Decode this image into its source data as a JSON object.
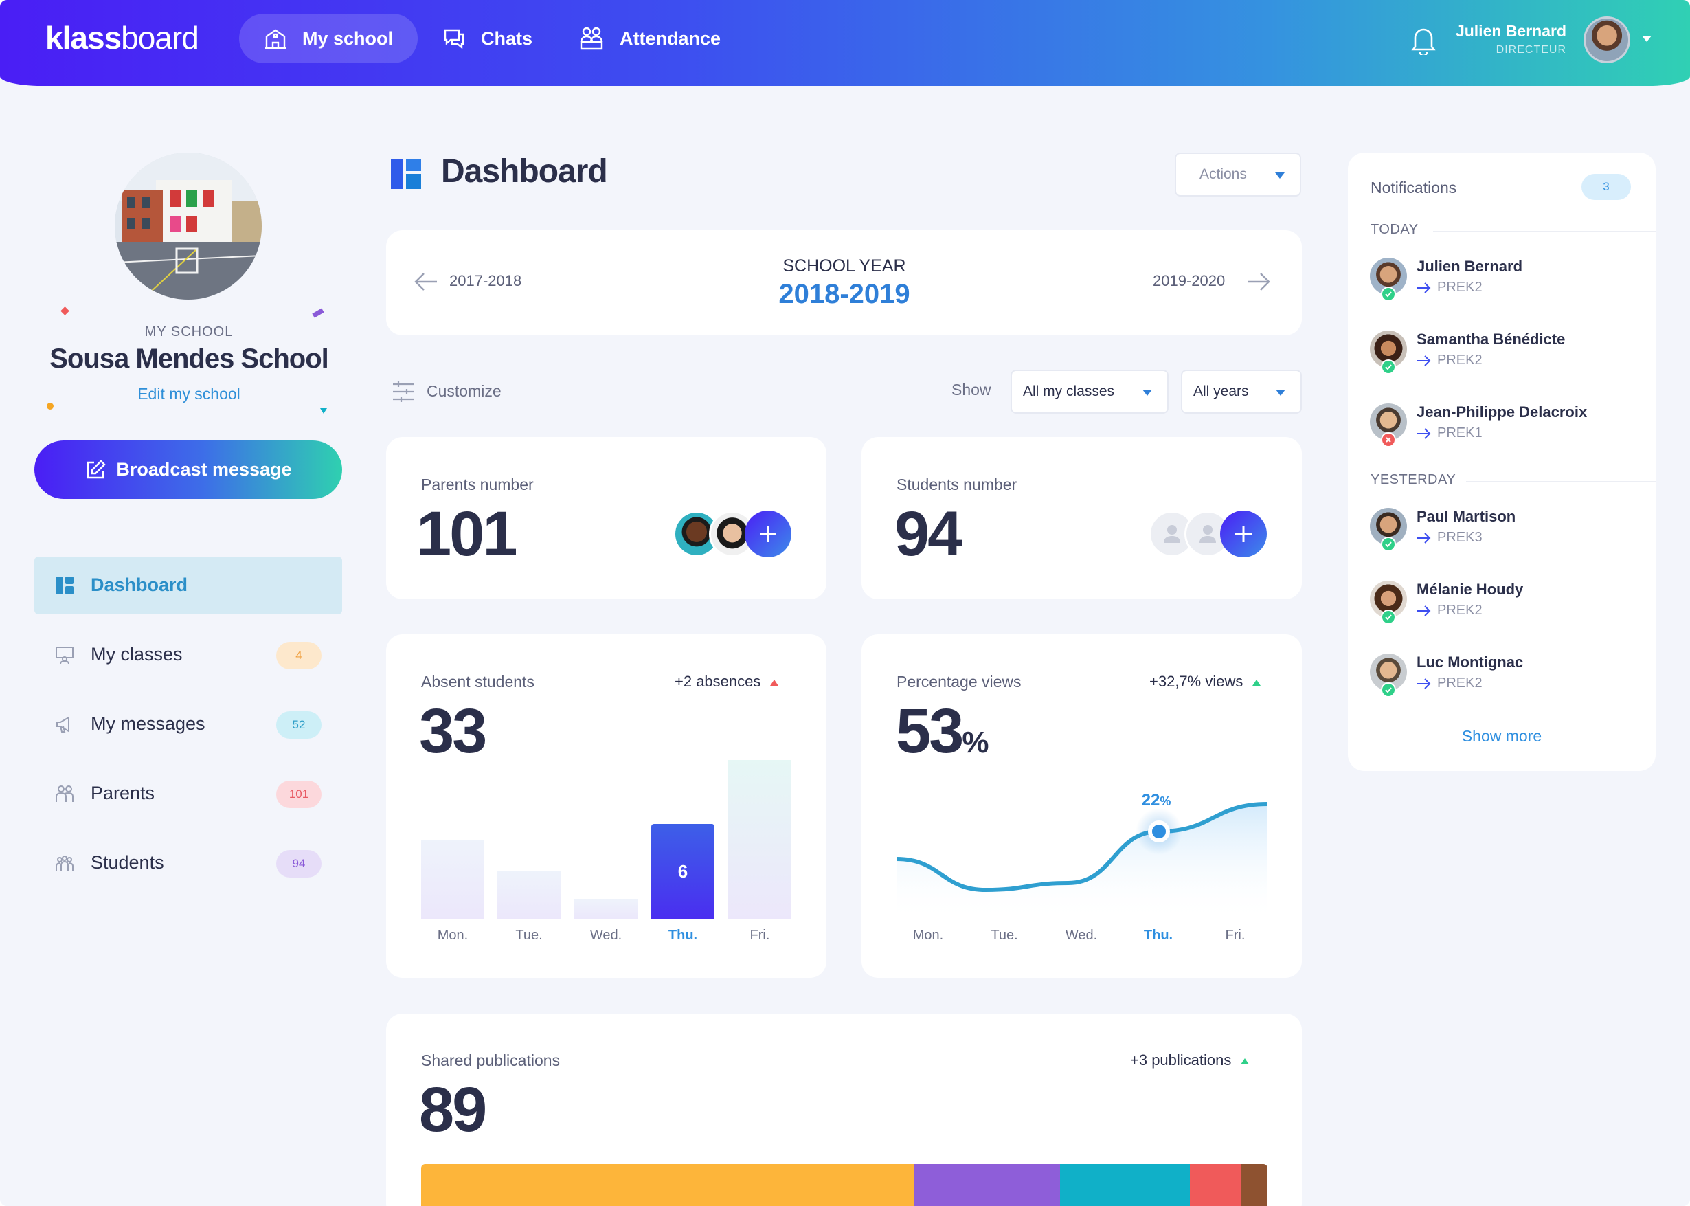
{
  "app": {
    "logo_bold": "klass",
    "logo_light": "board"
  },
  "topnav": {
    "items": [
      {
        "label": "My school",
        "icon": "school-icon",
        "active": true
      },
      {
        "label": "Chats",
        "icon": "chat-icon",
        "active": false
      },
      {
        "label": "Attendance",
        "icon": "attendance-icon",
        "active": false
      }
    ],
    "user": {
      "name": "Julien Bernard",
      "role": "DIRECTEUR"
    }
  },
  "sidebar": {
    "my_school_label": "MY SCHOOL",
    "school_name": "Sousa Mendes School",
    "edit_link": "Edit my school",
    "broadcast_label": "Broadcast message",
    "items": [
      {
        "label": "Dashboard",
        "icon": "dashboard-icon",
        "active": true,
        "badge": ""
      },
      {
        "label": "My classes",
        "icon": "classes-icon",
        "active": false,
        "badge": "4",
        "badge_color": "#fde8cc",
        "badge_text": "#f0a040"
      },
      {
        "label": "My messages",
        "icon": "megaphone-icon",
        "active": false,
        "badge": "52",
        "badge_color": "#cdeff7",
        "badge_text": "#2f9fc8"
      },
      {
        "label": "Parents",
        "icon": "parents-icon",
        "active": false,
        "badge": "101",
        "badge_color": "#fcd8dc",
        "badge_text": "#e85a64"
      },
      {
        "label": "Students",
        "icon": "students-icon",
        "active": false,
        "badge": "94",
        "badge_color": "#e6ddf8",
        "badge_text": "#8a5ad8"
      }
    ]
  },
  "main": {
    "title": "Dashboard",
    "actions_label": "Actions",
    "school_year": {
      "label": "SCHOOL YEAR",
      "current": "2018-2019",
      "prev": "2017-2018",
      "next": "2019-2020"
    },
    "customize_label": "Customize",
    "show_label": "Show",
    "filters": {
      "classes": "All my classes",
      "years": "All years"
    },
    "parents": {
      "label": "Parents number",
      "value": "101"
    },
    "students": {
      "label": "Students number",
      "value": "94"
    },
    "absent": {
      "label": "Absent students",
      "value": "33",
      "trend": "+2 absences",
      "highlight_label": "6"
    },
    "views": {
      "label": "Percentage views",
      "value": "53",
      "unit": "%",
      "trend": "+32,7% views",
      "point_label": "22",
      "point_unit": "%"
    },
    "publications": {
      "label": "Shared publications",
      "value": "89",
      "trend": "+3 publications"
    }
  },
  "chart_data": [
    {
      "type": "bar",
      "categories": [
        "Mon.",
        "Tue.",
        "Wed.",
        "Thu.",
        "Fri."
      ],
      "values": [
        5,
        3,
        1.3,
        6,
        10
      ],
      "highlight": "Thu.",
      "data_labels": {
        "Thu.": "6"
      },
      "title": "Absent students"
    },
    {
      "type": "area",
      "categories": [
        "Mon.",
        "Tue.",
        "Wed.",
        "Thu.",
        "Fri."
      ],
      "values": [
        18,
        13.5,
        14.5,
        22,
        26
      ],
      "highlight": "Thu.",
      "data_labels": {
        "Thu.": "22%"
      },
      "title": "Percentage views"
    },
    {
      "type": "bar",
      "stacked_share": true,
      "values": [
        57,
        17,
        15,
        6,
        3
      ],
      "colors": [
        "#fdb53a",
        "#8e5ed9",
        "#10b0c8",
        "#f05a5a",
        "#8e5230"
      ],
      "title": "Shared publications"
    }
  ],
  "notifications": {
    "title": "Notifications",
    "count": "3",
    "sections": [
      {
        "label": "TODAY",
        "items": [
          {
            "name": "Julien Bernard",
            "class": "PREK2",
            "status": "ok"
          },
          {
            "name": "Samantha Bénédicte",
            "class": "PREK2",
            "status": "ok"
          },
          {
            "name": "Jean-Philippe Delacroix",
            "class": "PREK1",
            "status": "error"
          }
        ]
      },
      {
        "label": "YESTERDAY",
        "items": [
          {
            "name": "Paul Martison",
            "class": "PREK3",
            "status": "ok"
          },
          {
            "name": "Mélanie Houdy",
            "class": "PREK2",
            "status": "ok"
          },
          {
            "name": "Luc Montignac",
            "class": "PREK2",
            "status": "ok"
          }
        ]
      }
    ],
    "show_more": "Show more"
  }
}
